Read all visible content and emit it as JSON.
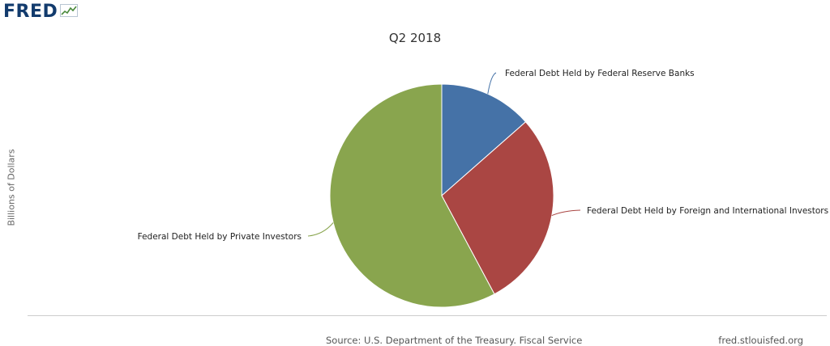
{
  "header": {
    "logo_text": "FRED"
  },
  "chart_data": {
    "type": "pie",
    "title": "Q2 2018",
    "ylabel": "Billions of Dollars",
    "series": [
      {
        "name": "Federal Debt Held by Federal Reserve Banks",
        "value": 13.5,
        "color": "#4572a7"
      },
      {
        "name": "Federal Debt Held by Foreign and International Investors",
        "value": 28.7,
        "color": "#aa4643"
      },
      {
        "name": "Federal Debt Held by Private Investors",
        "value": 57.8,
        "color": "#89a54e"
      }
    ]
  },
  "footer": {
    "source": "Source: U.S. Department of the Treasury. Fiscal Service",
    "site": "fred.stlouisfed.org"
  }
}
